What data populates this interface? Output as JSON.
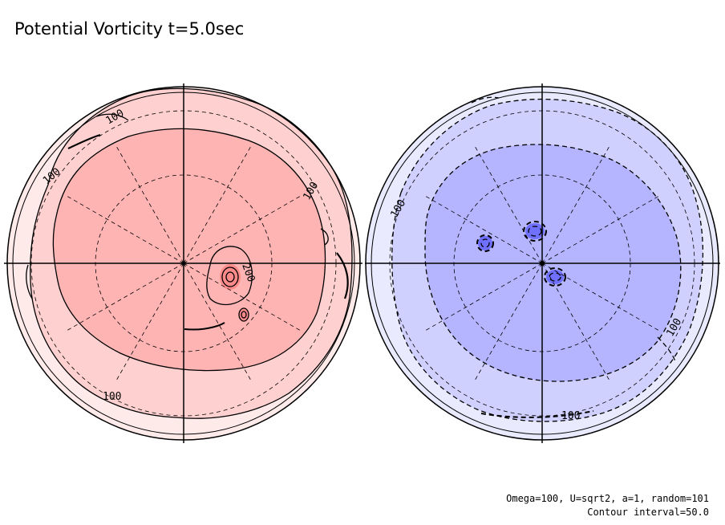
{
  "title": "Potential Vorticity t=5.0sec",
  "footer": {
    "parameters": "Omega=100, U=sqrt2, a=1, random=101",
    "contour_interval": "Contour interval=50.0"
  },
  "colors": {
    "north_fill_outer": "#ffeaea",
    "north_fill_mid": "#ffd0d0",
    "north_fill_inner": "#ffb4b4",
    "north_fill_core": "#ff8a8a",
    "south_fill_outer": "#eaeaff",
    "south_fill_mid": "#d0d0ff",
    "south_fill_inner": "#b4b4ff",
    "south_fill_core": "#7070ff",
    "contour": "#000000"
  },
  "hemispheres": {
    "north": {
      "labels": [
        "100",
        "100",
        "100",
        "100",
        "200"
      ]
    },
    "south": {
      "labels": [
        "100",
        "100",
        "100"
      ]
    }
  }
}
